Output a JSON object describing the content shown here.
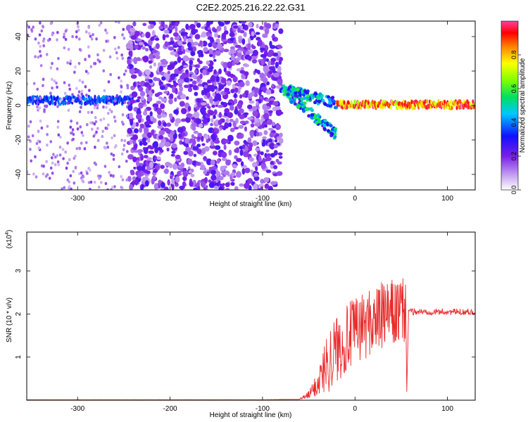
{
  "title": "C2E2.2025.216.22.22.G31",
  "chart_data": [
    {
      "type": "heatmap",
      "xlabel": "Height of straight line (km)",
      "ylabel": "Frequency (Hz)",
      "xlim": [
        -355,
        130
      ],
      "ylim": [
        -49,
        49
      ],
      "x_ticks": [
        -300,
        -200,
        -100,
        0,
        100
      ],
      "y_ticks": [
        -40,
        -20,
        0,
        20,
        40
      ],
      "colorbar": {
        "label": "Normalized spectral amplitude",
        "range": [
          0,
          1
        ],
        "ticks": [
          "0.0",
          "0.2",
          "0.4",
          "0.6",
          "0.8"
        ]
      },
      "features": [
        {
          "segment": "strong band",
          "x_range": [
            -355,
            -240
          ],
          "freq_hz": 3,
          "amplitude": 0.4
        },
        {
          "segment": "scattered noise",
          "x_range": [
            -245,
            -80
          ],
          "freq_range": [
            -49,
            49
          ],
          "amplitude": 0.2
        },
        {
          "segment": "diverging trace",
          "x_range": [
            -80,
            -20
          ],
          "freq_range": [
            -18,
            10
          ],
          "amplitude": 0.45
        },
        {
          "segment": "strong band",
          "x_range": [
            -20,
            130
          ],
          "freq_hz": 0.5,
          "amplitude": 0.95
        }
      ]
    },
    {
      "type": "line",
      "xlabel": "Height of straight line (km)",
      "ylabel": "SNR (10 * v/v)",
      "multiplier_label": "(x10",
      "multiplier_exp": "4",
      "xlim": [
        -355,
        130
      ],
      "ylim": [
        0,
        3.9
      ],
      "x_ticks": [
        -300,
        -200,
        -100,
        0,
        100
      ],
      "y_ticks": [
        1,
        2,
        3
      ],
      "series": [
        {
          "color": "#e82c2c",
          "x": [
            -355,
            -300,
            -250,
            -200,
            -150,
            -100,
            -60,
            -50,
            -40,
            -30,
            -20,
            -10,
            0,
            10,
            20,
            30,
            40,
            50,
            55,
            56,
            58,
            60,
            70,
            80,
            100,
            120,
            130
          ],
          "y": [
            0.01,
            0.01,
            0.01,
            0.01,
            0.01,
            0.01,
            0.02,
            0.12,
            0.4,
            0.9,
            1.2,
            1.4,
            1.6,
            1.75,
            1.85,
            1.95,
            2.0,
            2.05,
            2.05,
            0.2,
            2.1,
            2.05,
            2.05,
            2.05,
            2.05,
            2.05,
            2.05
          ]
        }
      ]
    }
  ]
}
